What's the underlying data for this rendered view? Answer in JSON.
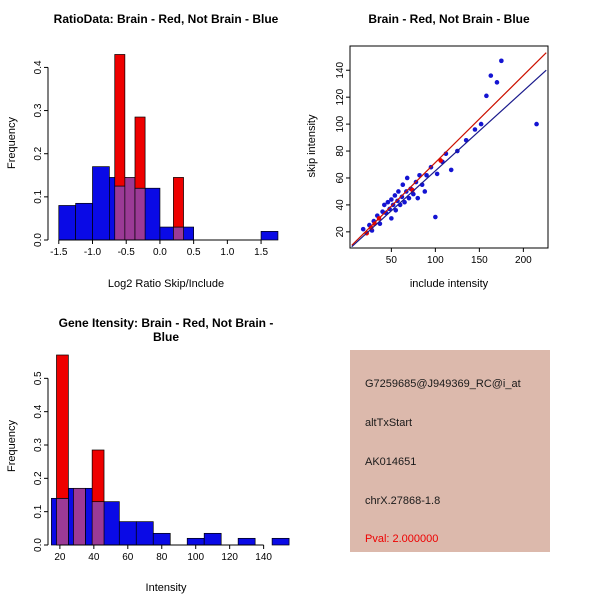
{
  "chart_data": [
    {
      "id": "ratio_histogram",
      "type": "bar",
      "title": "RatioData: Brain - Red, Not Brain - Blue",
      "xlabel": "Log2 Ratio Skip/Include",
      "ylabel": "Frequency",
      "xlim": [
        -1.66,
        1.84
      ],
      "ylim": [
        0,
        0.445
      ],
      "grid": false,
      "legend": "none",
      "xticks": [
        [
          -1.5,
          "-1.5"
        ],
        [
          -1.0,
          "-1.0"
        ],
        [
          -0.5,
          "-0.5"
        ],
        [
          0,
          "0.0"
        ],
        [
          0.5,
          "0.5"
        ],
        [
          1.0,
          "1.0"
        ],
        [
          1.5,
          "1.5"
        ]
      ],
      "yticks": [
        [
          0,
          "0.0"
        ],
        [
          0.1,
          "0.1"
        ],
        [
          0.2,
          "0.2"
        ],
        [
          0.3,
          "0.3"
        ],
        [
          0.4,
          "0.4"
        ]
      ],
      "series": [
        {
          "name": "Not Brain (blue)",
          "color": "#0A0AE6",
          "binWidth": 0.25,
          "bars": [
            [
              -1.5,
              0.08
            ],
            [
              -1.25,
              0.085
            ],
            [
              -1.0,
              0.17
            ],
            [
              -0.75,
              0.145
            ],
            [
              -0.5,
              0.125
            ],
            [
              -0.25,
              0.12
            ],
            [
              0,
              0.03
            ],
            [
              0.25,
              0.03
            ],
            [
              1.5,
              0.02
            ]
          ]
        },
        {
          "name": "Brain (red)",
          "color": "#EE0000",
          "overlap_color": "#9B3A96",
          "binWidth": 0.15,
          "bars": [
            [
              -0.67,
              0.43,
              0.125
            ],
            [
              -0.52,
              0.145,
              0.145
            ],
            [
              -0.37,
              0.285,
              0.12
            ],
            [
              0.2,
              0.145,
              0.03
            ]
          ]
        }
      ]
    },
    {
      "id": "intensity_scatter",
      "type": "scatter",
      "title": "Brain - Red, Not Brain - Blue",
      "xlabel": "include intensity",
      "ylabel": "skip intensity",
      "xlim": [
        3,
        228
      ],
      "ylim": [
        8,
        158
      ],
      "box": true,
      "grid": false,
      "legend": "none",
      "xticks": [
        [
          50,
          "50"
        ],
        [
          100,
          "100"
        ],
        [
          150,
          "150"
        ],
        [
          200,
          "200"
        ]
      ],
      "yticks": [
        [
          20,
          "20"
        ],
        [
          40,
          "40"
        ],
        [
          60,
          "60"
        ],
        [
          80,
          "80"
        ],
        [
          100,
          "100"
        ],
        [
          120,
          "120"
        ],
        [
          140,
          "140"
        ]
      ],
      "series": [
        {
          "name": "Not Brain (blue)",
          "color": "#1414D2",
          "points": [
            [
              18,
              22
            ],
            [
              25,
              25
            ],
            [
              28,
              21
            ],
            [
              30,
              28
            ],
            [
              34,
              32
            ],
            [
              37,
              26
            ],
            [
              40,
              35
            ],
            [
              42,
              40
            ],
            [
              44,
              34
            ],
            [
              46,
              42
            ],
            [
              48,
              37
            ],
            [
              50,
              30
            ],
            [
              50,
              44
            ],
            [
              52,
              40
            ],
            [
              54,
              47
            ],
            [
              55,
              36
            ],
            [
              57,
              43
            ],
            [
              58,
              50
            ],
            [
              60,
              40
            ],
            [
              62,
              46
            ],
            [
              63,
              55
            ],
            [
              65,
              42
            ],
            [
              67,
              50
            ],
            [
              68,
              60
            ],
            [
              70,
              45
            ],
            [
              72,
              52
            ],
            [
              75,
              48
            ],
            [
              78,
              57
            ],
            [
              80,
              45
            ],
            [
              82,
              62
            ],
            [
              85,
              55
            ],
            [
              88,
              50
            ],
            [
              90,
              62
            ],
            [
              95,
              68
            ],
            [
              100,
              31
            ],
            [
              102,
              63
            ],
            [
              108,
              72
            ],
            [
              112,
              78
            ],
            [
              118,
              66
            ],
            [
              125,
              80
            ],
            [
              135,
              88
            ],
            [
              145,
              96
            ],
            [
              152,
              100
            ],
            [
              158,
              121
            ],
            [
              163,
              136
            ],
            [
              170,
              131
            ],
            [
              175,
              147
            ],
            [
              215,
              100
            ]
          ]
        },
        {
          "name": "Brain (red)",
          "color": "#EE0000",
          "points": [
            [
              22,
              19
            ],
            [
              27,
              23
            ],
            [
              31,
              26
            ],
            [
              36,
              30
            ],
            [
              74,
              51
            ],
            [
              106,
              73
            ]
          ]
        }
      ],
      "lines": [
        {
          "name": "brain-fit-line",
          "color": "#CC1100",
          "x1": 5,
          "y1": 10,
          "x2": 226,
          "y2": 153
        },
        {
          "name": "notbrain-fit-line",
          "color": "#1A1A8C",
          "x1": 5,
          "y1": 9,
          "x2": 226,
          "y2": 140
        }
      ]
    },
    {
      "id": "gene_intensity_histogram",
      "type": "bar",
      "title": "Gene Itensity: Brain - Red, Not Brain - Blue",
      "xlabel": "Intensity",
      "ylabel": "Frequency",
      "xlim": [
        13,
        152
      ],
      "ylim": [
        0,
        0.585
      ],
      "grid": false,
      "legend": "none",
      "xticks": [
        [
          20,
          "20"
        ],
        [
          40,
          "40"
        ],
        [
          60,
          "60"
        ],
        [
          80,
          "80"
        ],
        [
          100,
          "100"
        ],
        [
          120,
          "120"
        ],
        [
          140,
          "140"
        ]
      ],
      "yticks": [
        [
          0,
          "0.0"
        ],
        [
          0.1,
          "0.1"
        ],
        [
          0.2,
          "0.2"
        ],
        [
          0.3,
          "0.3"
        ],
        [
          0.4,
          "0.4"
        ],
        [
          0.5,
          "0.5"
        ]
      ],
      "series": [
        {
          "name": "Not Brain (blue)",
          "color": "#0A0AE6",
          "binWidth": 10,
          "bars": [
            [
              15,
              0.14
            ],
            [
              25,
              0.17
            ],
            [
              35,
              0.17
            ],
            [
              45,
              0.13
            ],
            [
              55,
              0.07
            ],
            [
              65,
              0.07
            ],
            [
              75,
              0.035
            ],
            [
              95,
              0.02
            ],
            [
              105,
              0.035
            ],
            [
              125,
              0.02
            ],
            [
              145,
              0.02
            ]
          ]
        },
        {
          "name": "Brain (red)",
          "color": "#EE0000",
          "overlap_color": "#9B3A96",
          "binWidth": 7,
          "bars": [
            [
              18,
              0.57,
              0.14
            ],
            [
              28,
              0.17,
              0.17
            ],
            [
              39,
              0.285,
              0.13
            ]
          ]
        }
      ]
    }
  ],
  "info_box": {
    "bg": "#DCB9AC",
    "lines": [
      "G7259685@J949369_RC@i_at",
      "altTxStart",
      "AK014651",
      "chrX.27868-1.8"
    ],
    "pval": "Pval: 2.000000",
    "pval_color": "#EE0000"
  }
}
